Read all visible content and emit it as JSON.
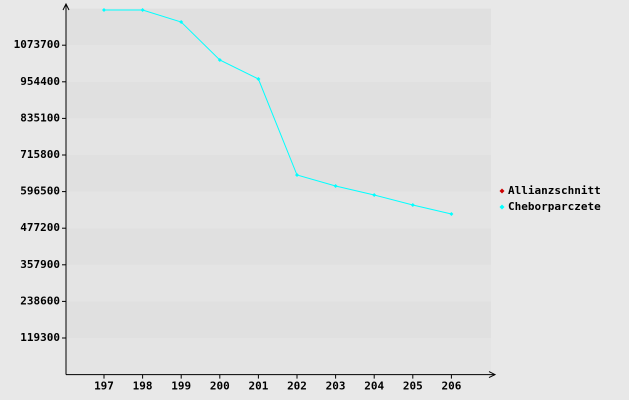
{
  "chart_data": {
    "type": "line",
    "categories": [
      "197",
      "198",
      "199",
      "200",
      "201",
      "202",
      "203",
      "204",
      "205",
      "206"
    ],
    "series": [
      {
        "name": "Allianzschnitt",
        "color": "#cc0000",
        "values": [
          null,
          null,
          null,
          null,
          null,
          null,
          null,
          null,
          null,
          null
        ]
      },
      {
        "name": "Cheborparczete",
        "color": "#00ffff",
        "values": [
          1188500,
          1188500,
          1149300,
          1025500,
          963500,
          650600,
          614800,
          585400,
          552800,
          523500
        ]
      }
    ],
    "ylim": [
      0,
      1193000
    ],
    "yticks": [
      119300,
      238600,
      357900,
      477200,
      596500,
      715800,
      835100,
      954400,
      1073700
    ],
    "grid": true,
    "legend": "right"
  }
}
